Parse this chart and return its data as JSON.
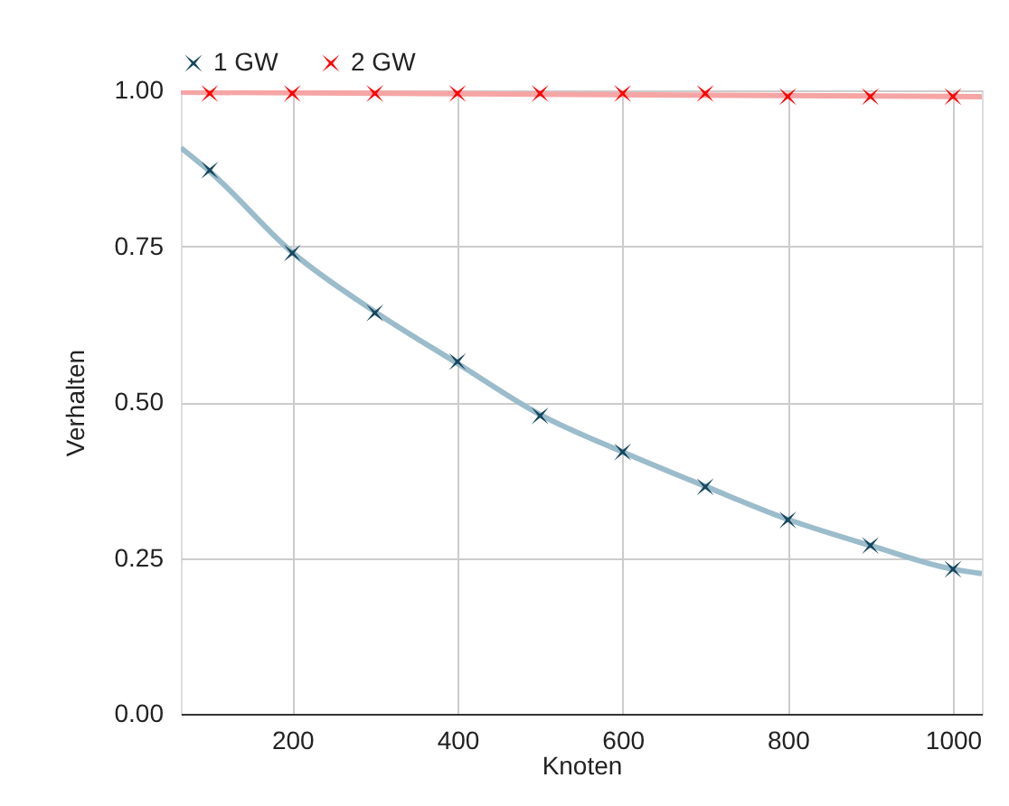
{
  "chart_data": {
    "type": "scatter",
    "xlabel": "Knoten",
    "ylabel": "Verhalten",
    "x": [
      100,
      200,
      300,
      400,
      500,
      600,
      700,
      800,
      900,
      1000
    ],
    "series": [
      {
        "name": "1 GW",
        "color": "#17475e",
        "values": [
          0.872,
          0.739,
          0.643,
          0.565,
          0.478,
          0.42,
          0.364,
          0.311,
          0.27,
          0.232
        ]
      },
      {
        "name": "2 GW",
        "color": "#ff0000",
        "values": [
          0.995,
          0.995,
          0.995,
          0.995,
          0.995,
          0.995,
          0.995,
          0.99,
          0.99,
          0.99
        ]
      },
      {
        "type": "line",
        "marker": "none",
        "color": "#9bbccb",
        "x": [
          65,
          100,
          200,
          300,
          400,
          500,
          600,
          700,
          800,
          900,
          1000,
          1035
        ],
        "values": [
          0.908,
          0.87,
          0.74,
          0.645,
          0.562,
          0.48,
          0.42,
          0.365,
          0.312,
          0.27,
          0.232,
          0.225
        ]
      },
      {
        "type": "line",
        "marker": "none",
        "color": "#f6a5a5",
        "x": [
          65,
          1035
        ],
        "values": [
          0.997,
          0.99
        ]
      }
    ],
    "xlim": [
      65,
      1035
    ],
    "xticks": [
      200,
      400,
      600,
      800,
      1000
    ],
    "ylim": [
      0,
      1
    ],
    "yticks": [
      {
        "value": 0,
        "label": "0.00"
      },
      {
        "value": 0.25,
        "label": "0.25"
      },
      {
        "value": 0.5,
        "label": "0.50"
      },
      {
        "value": 0.75,
        "label": "0.75"
      },
      {
        "value": 1,
        "label": "1.00"
      }
    ],
    "grid": true,
    "legend": "top",
    "marker": "cross",
    "line_style": "solid"
  }
}
